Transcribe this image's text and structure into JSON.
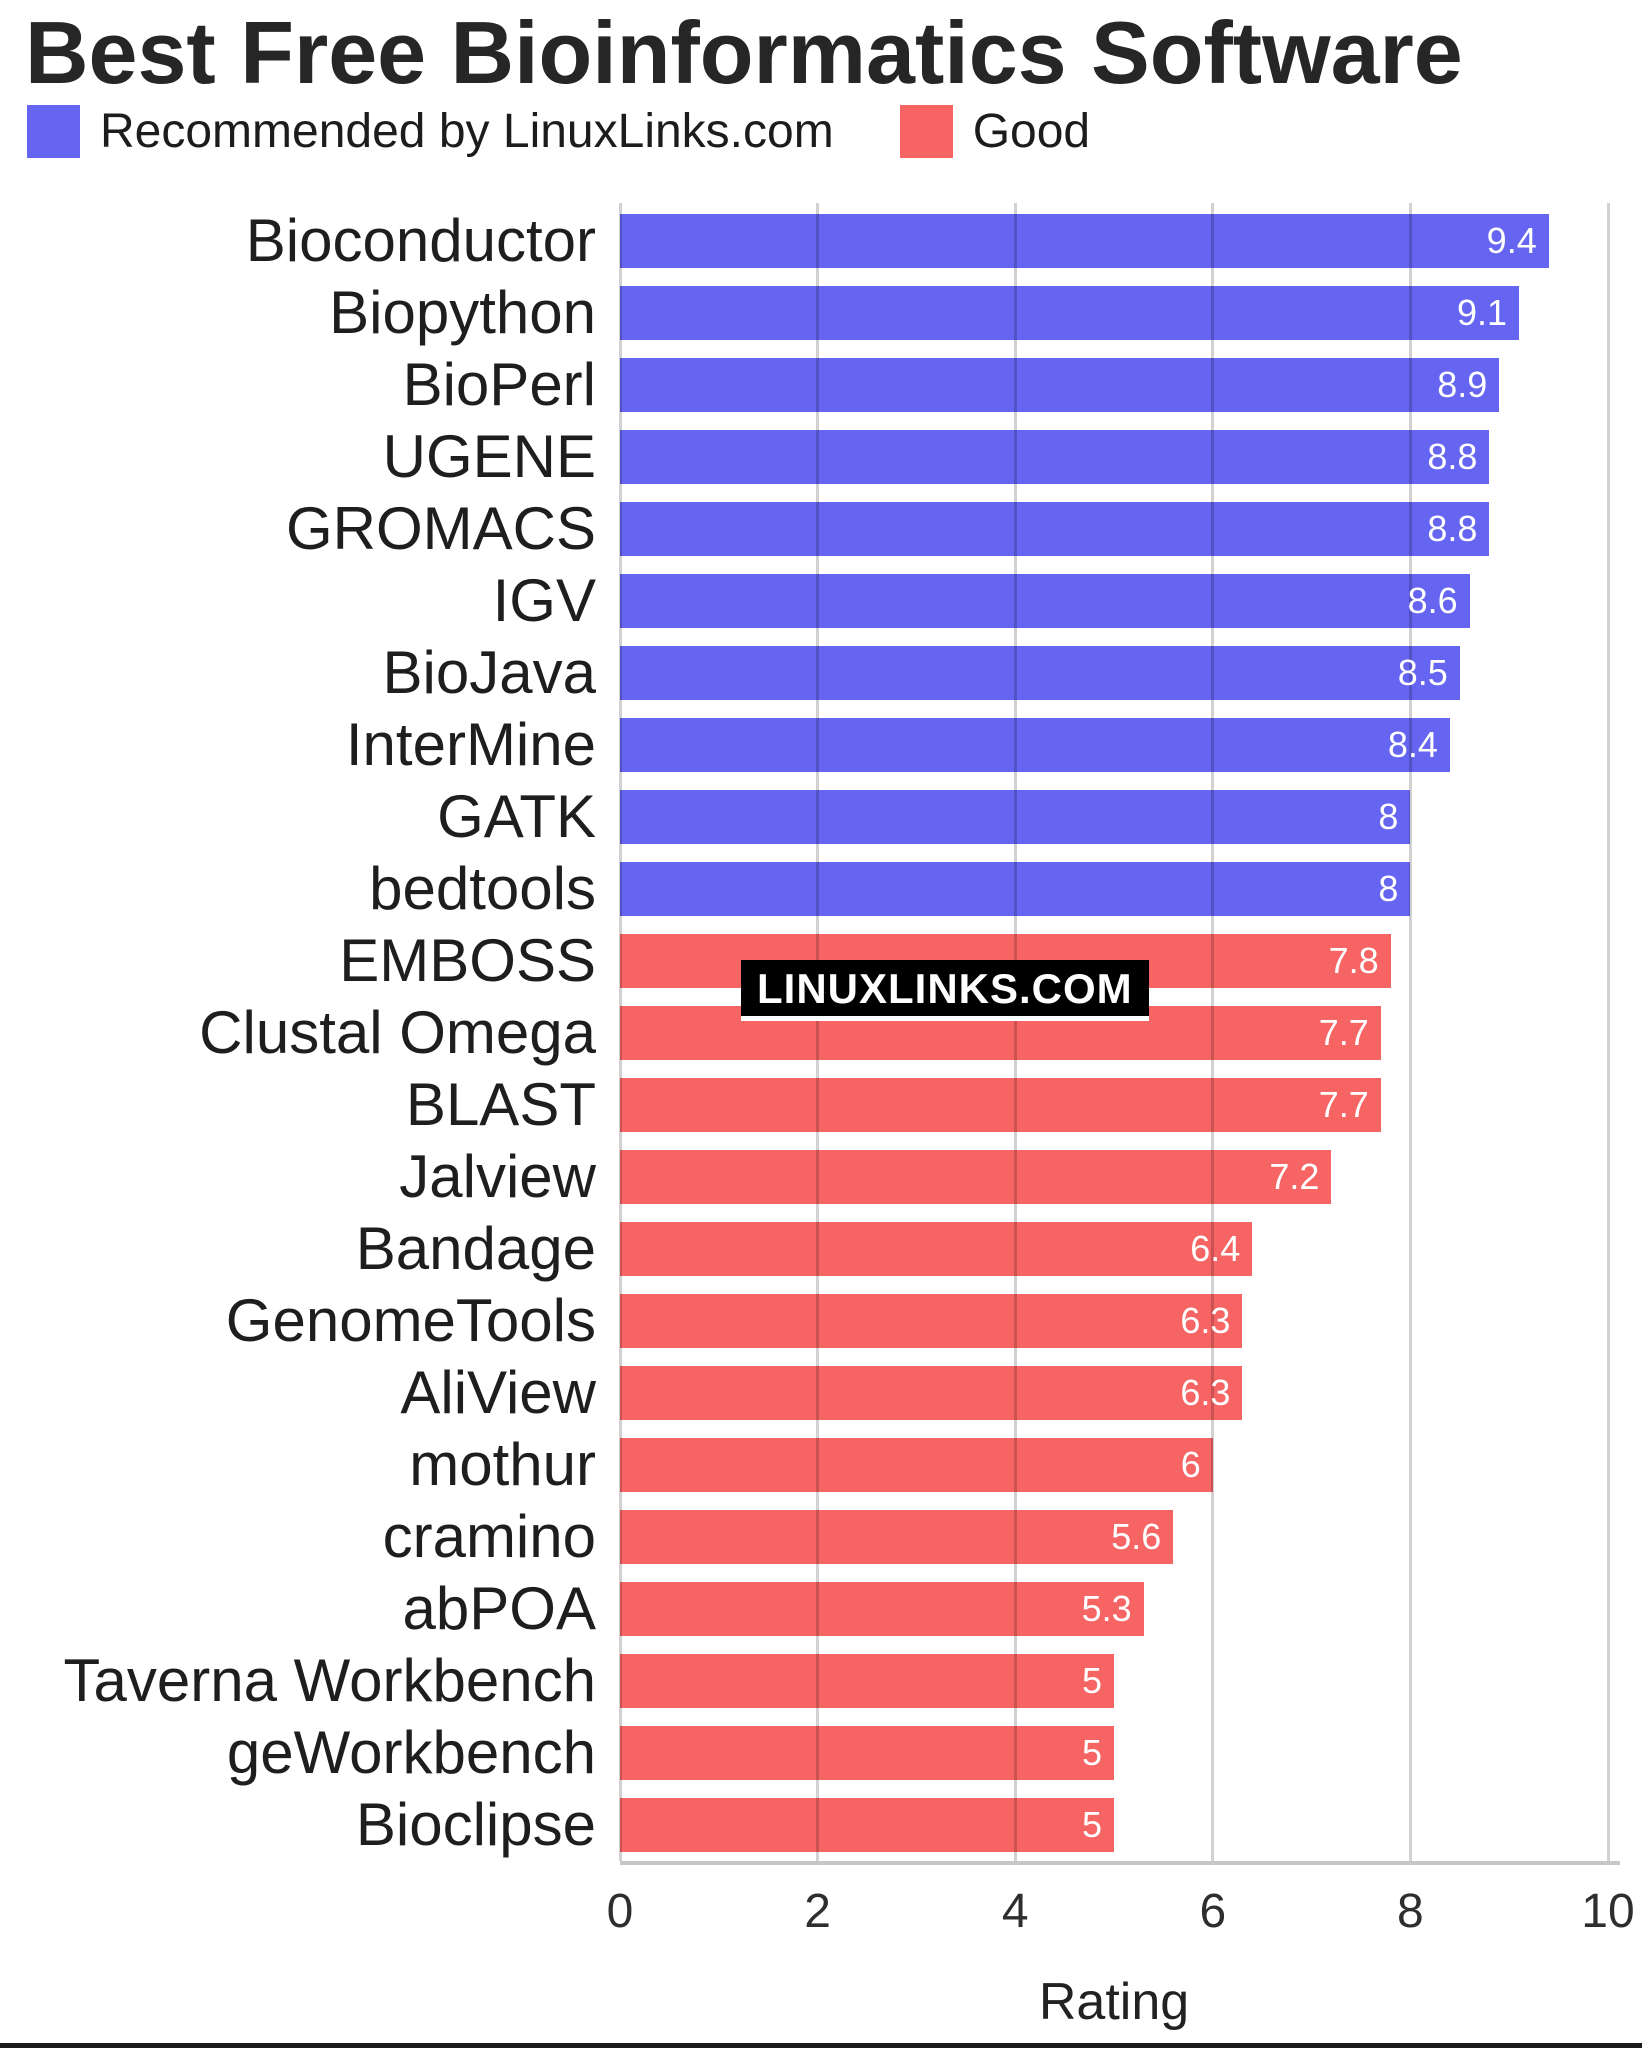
{
  "title": "Best Free Bioinformatics Software",
  "legend": [
    {
      "label": "Recommended by LinuxLinks.com",
      "color": "#6565f1"
    },
    {
      "label": "Good",
      "color": "#f76464"
    }
  ],
  "watermark": "LINUXLINKS.COM",
  "colors": {
    "recommended": "#6565f1",
    "good": "#f76464",
    "gridline": "rgba(0,0,0,0.18)",
    "value_text": "#ffffff"
  },
  "x_axis": {
    "label": "Rating",
    "ticks": [
      "0",
      "2",
      "4",
      "6",
      "8",
      "10"
    ],
    "min": 0,
    "max": 10
  },
  "bars": [
    {
      "label": "Bioconductor",
      "value": 9.4,
      "display": "9.4",
      "group": "recommended"
    },
    {
      "label": "Biopython",
      "value": 9.1,
      "display": "9.1",
      "group": "recommended"
    },
    {
      "label": "BioPerl",
      "value": 8.9,
      "display": "8.9",
      "group": "recommended"
    },
    {
      "label": "UGENE",
      "value": 8.8,
      "display": "8.8",
      "group": "recommended"
    },
    {
      "label": "GROMACS",
      "value": 8.8,
      "display": "8.8",
      "group": "recommended"
    },
    {
      "label": "IGV",
      "value": 8.6,
      "display": "8.6",
      "group": "recommended"
    },
    {
      "label": "BioJava",
      "value": 8.5,
      "display": "8.5",
      "group": "recommended"
    },
    {
      "label": "InterMine",
      "value": 8.4,
      "display": "8.4",
      "group": "recommended"
    },
    {
      "label": "GATK",
      "value": 8,
      "display": "8",
      "group": "recommended"
    },
    {
      "label": "bedtools",
      "value": 8,
      "display": "8",
      "group": "recommended"
    },
    {
      "label": "EMBOSS",
      "value": 7.8,
      "display": "7.8",
      "group": "good"
    },
    {
      "label": "Clustal Omega",
      "value": 7.7,
      "display": "7.7",
      "group": "good"
    },
    {
      "label": "BLAST",
      "value": 7.7,
      "display": "7.7",
      "group": "good"
    },
    {
      "label": "Jalview",
      "value": 7.2,
      "display": "7.2",
      "group": "good"
    },
    {
      "label": "Bandage",
      "value": 6.4,
      "display": "6.4",
      "group": "good"
    },
    {
      "label": "GenomeTools",
      "value": 6.3,
      "display": "6.3",
      "group": "good"
    },
    {
      "label": "AliView",
      "value": 6.3,
      "display": "6.3",
      "group": "good"
    },
    {
      "label": "mothur",
      "value": 6,
      "display": "6",
      "group": "good"
    },
    {
      "label": "cramino",
      "value": 5.6,
      "display": "5.6",
      "group": "good"
    },
    {
      "label": "abPOA",
      "value": 5.3,
      "display": "5.3",
      "group": "good"
    },
    {
      "label": "Taverna Workbench",
      "value": 5,
      "display": "5",
      "group": "good"
    },
    {
      "label": "geWorkbench",
      "value": 5,
      "display": "5",
      "group": "good"
    },
    {
      "label": "Bioclipse",
      "value": 5,
      "display": "5",
      "group": "good"
    }
  ],
  "chart_data": {
    "type": "bar",
    "orientation": "horizontal",
    "title": "Best Free Bioinformatics Software",
    "xlabel": "Rating",
    "ylabel": "",
    "xlim": [
      0,
      10
    ],
    "xticks": [
      0,
      2,
      4,
      6,
      8,
      10
    ],
    "grid": true,
    "legend_position": "top",
    "categories": [
      "Bioconductor",
      "Biopython",
      "BioPerl",
      "UGENE",
      "GROMACS",
      "IGV",
      "BioJava",
      "InterMine",
      "GATK",
      "bedtools",
      "EMBOSS",
      "Clustal Omega",
      "BLAST",
      "Jalview",
      "Bandage",
      "GenomeTools",
      "AliView",
      "mothur",
      "cramino",
      "abPOA",
      "Taverna Workbench",
      "geWorkbench",
      "Bioclipse"
    ],
    "values": [
      9.4,
      9.1,
      8.9,
      8.8,
      8.8,
      8.6,
      8.5,
      8.4,
      8,
      8,
      7.8,
      7.7,
      7.7,
      7.2,
      6.4,
      6.3,
      6.3,
      6,
      5.6,
      5.3,
      5,
      5,
      5
    ],
    "series": [
      {
        "name": "Recommended by LinuxLinks.com",
        "color": "#6565f1",
        "categories": [
          "Bioconductor",
          "Biopython",
          "BioPerl",
          "UGENE",
          "GROMACS",
          "IGV",
          "BioJava",
          "InterMine",
          "GATK",
          "bedtools"
        ],
        "values": [
          9.4,
          9.1,
          8.9,
          8.8,
          8.8,
          8.6,
          8.5,
          8.4,
          8,
          8
        ]
      },
      {
        "name": "Good",
        "color": "#f76464",
        "categories": [
          "EMBOSS",
          "Clustal Omega",
          "BLAST",
          "Jalview",
          "Bandage",
          "GenomeTools",
          "AliView",
          "mothur",
          "cramino",
          "abPOA",
          "Taverna Workbench",
          "geWorkbench",
          "Bioclipse"
        ],
        "values": [
          7.8,
          7.7,
          7.7,
          7.2,
          6.4,
          6.3,
          6.3,
          6,
          5.6,
          5.3,
          5,
          5,
          5
        ]
      }
    ],
    "annotations": [
      "LINUXLINKS.COM"
    ]
  }
}
